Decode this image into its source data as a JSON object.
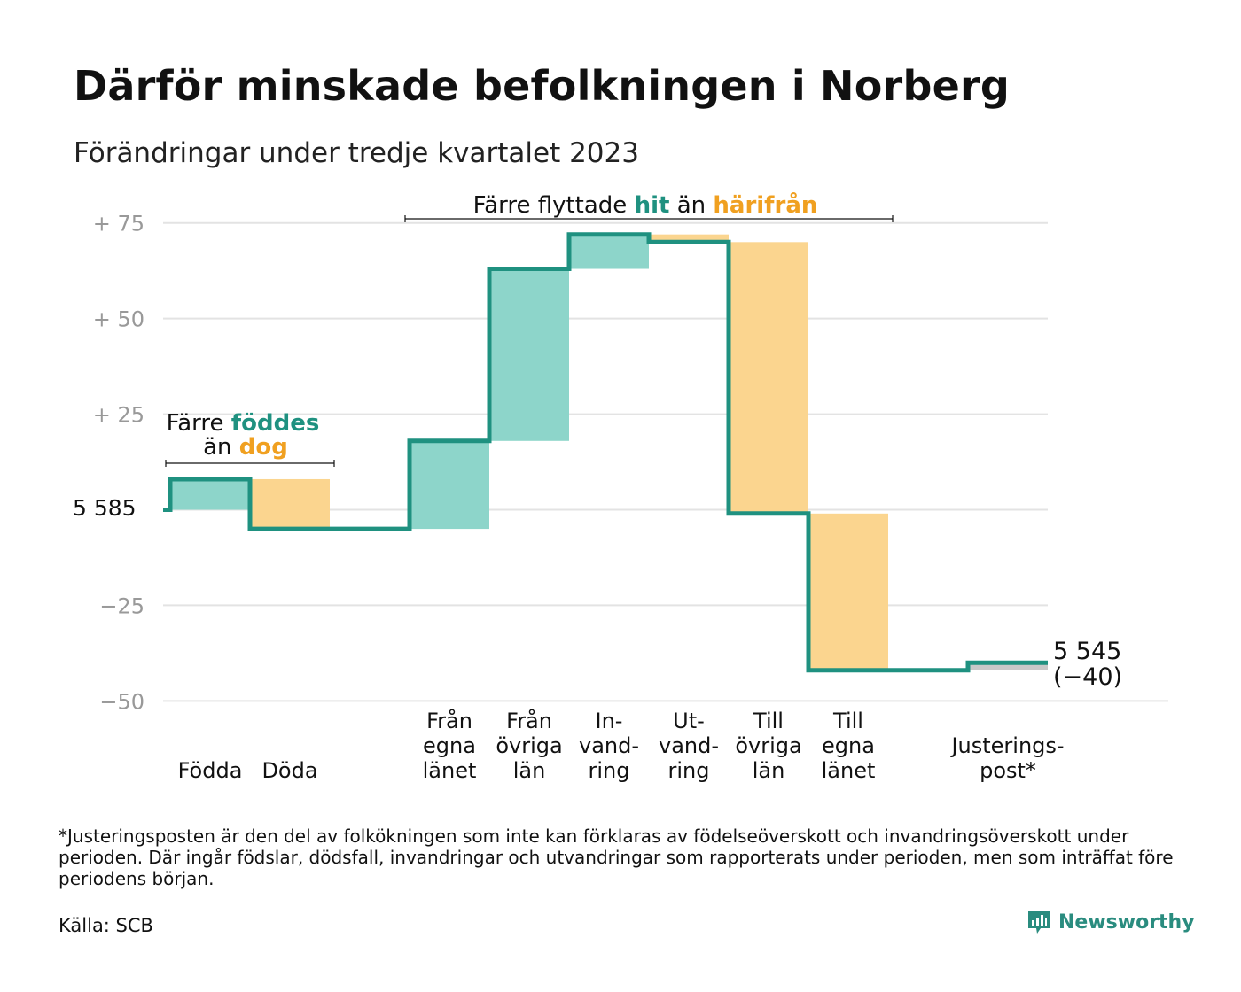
{
  "title": "Därför minskade befolkningen i Norberg",
  "subtitle": "Förändringar under tredje kvartalet 2023",
  "colors": {
    "increase": "#8dd5ca",
    "decrease": "#fbd58f",
    "adjustment": "#c8c8c8",
    "line": "#1f9180",
    "teal_text": "#1f9180",
    "orange_text": "#f0a020",
    "grid": "#e3e3e3",
    "tick": "#999999"
  },
  "annotations": {
    "birth": {
      "line1_pre": "Färre ",
      "line1_em": "föddes",
      "line2_pre": "än ",
      "line2_em": "dog"
    },
    "migration": {
      "pre": "Färre flyttade ",
      "em1": "hit",
      "mid": " än ",
      "em2": "härifrån"
    }
  },
  "chart_data": {
    "type": "waterfall",
    "baseline_label": "5  585",
    "baseline": 5585,
    "y_ticks": [
      {
        "value": 75,
        "label": "+  75"
      },
      {
        "value": 50,
        "label": "+  50"
      },
      {
        "value": 25,
        "label": "+  25"
      },
      {
        "value": 0,
        "label": ""
      },
      {
        "value": -25,
        "label": "−25"
      },
      {
        "value": -50,
        "label": "−50"
      }
    ],
    "ylim": [
      -50,
      75
    ],
    "grid": true,
    "steps": [
      {
        "label": "Födda",
        "label_lines": [
          "Födda"
        ],
        "change": 8,
        "kind": "increase"
      },
      {
        "label": "Döda",
        "label_lines": [
          "Döda"
        ],
        "change": -13,
        "kind": "decrease"
      },
      {
        "label": "",
        "label_lines": [],
        "change": 0,
        "kind": "gap"
      },
      {
        "label": "Från egna länet",
        "label_lines": [
          "Från",
          "egna",
          "länet"
        ],
        "change": 23,
        "kind": "increase"
      },
      {
        "label": "Från övriga län",
        "label_lines": [
          "Från",
          "övriga",
          "län"
        ],
        "change": 45,
        "kind": "increase"
      },
      {
        "label": "In-vand-ring",
        "label_lines": [
          "In-",
          "vand-",
          "ring"
        ],
        "change": 9,
        "kind": "increase"
      },
      {
        "label": "Ut-vand-ring",
        "label_lines": [
          "Ut-",
          "vand-",
          "ring"
        ],
        "change": -2,
        "kind": "decrease"
      },
      {
        "label": "Till övriga län",
        "label_lines": [
          "Till",
          "övriga",
          "län"
        ],
        "change": -71,
        "kind": "decrease"
      },
      {
        "label": "Till egna länet",
        "label_lines": [
          "Till",
          "egna",
          "länet"
        ],
        "change": -41,
        "kind": "decrease"
      },
      {
        "label": "",
        "label_lines": [],
        "change": 0,
        "kind": "gap"
      },
      {
        "label": "Justerings-post*",
        "label_lines": [
          "Justerings-",
          "post*"
        ],
        "change": 2,
        "kind": "adjustment"
      }
    ],
    "final_label": "5 545",
    "final_change_label": "(−40)"
  },
  "footnote": "*Justeringsposten är den del av folkökningen som inte kan förklaras av födelseöverskott och invandringsöverskott under perioden. Där ingår födslar, dödsfall, invandringar och utvandringar som rapporterats under perioden, men som inträffat före periodens början.",
  "source": "Källa: SCB",
  "brand": {
    "name": "Newsworthy",
    "icon": "newsworthy-logo-icon"
  }
}
